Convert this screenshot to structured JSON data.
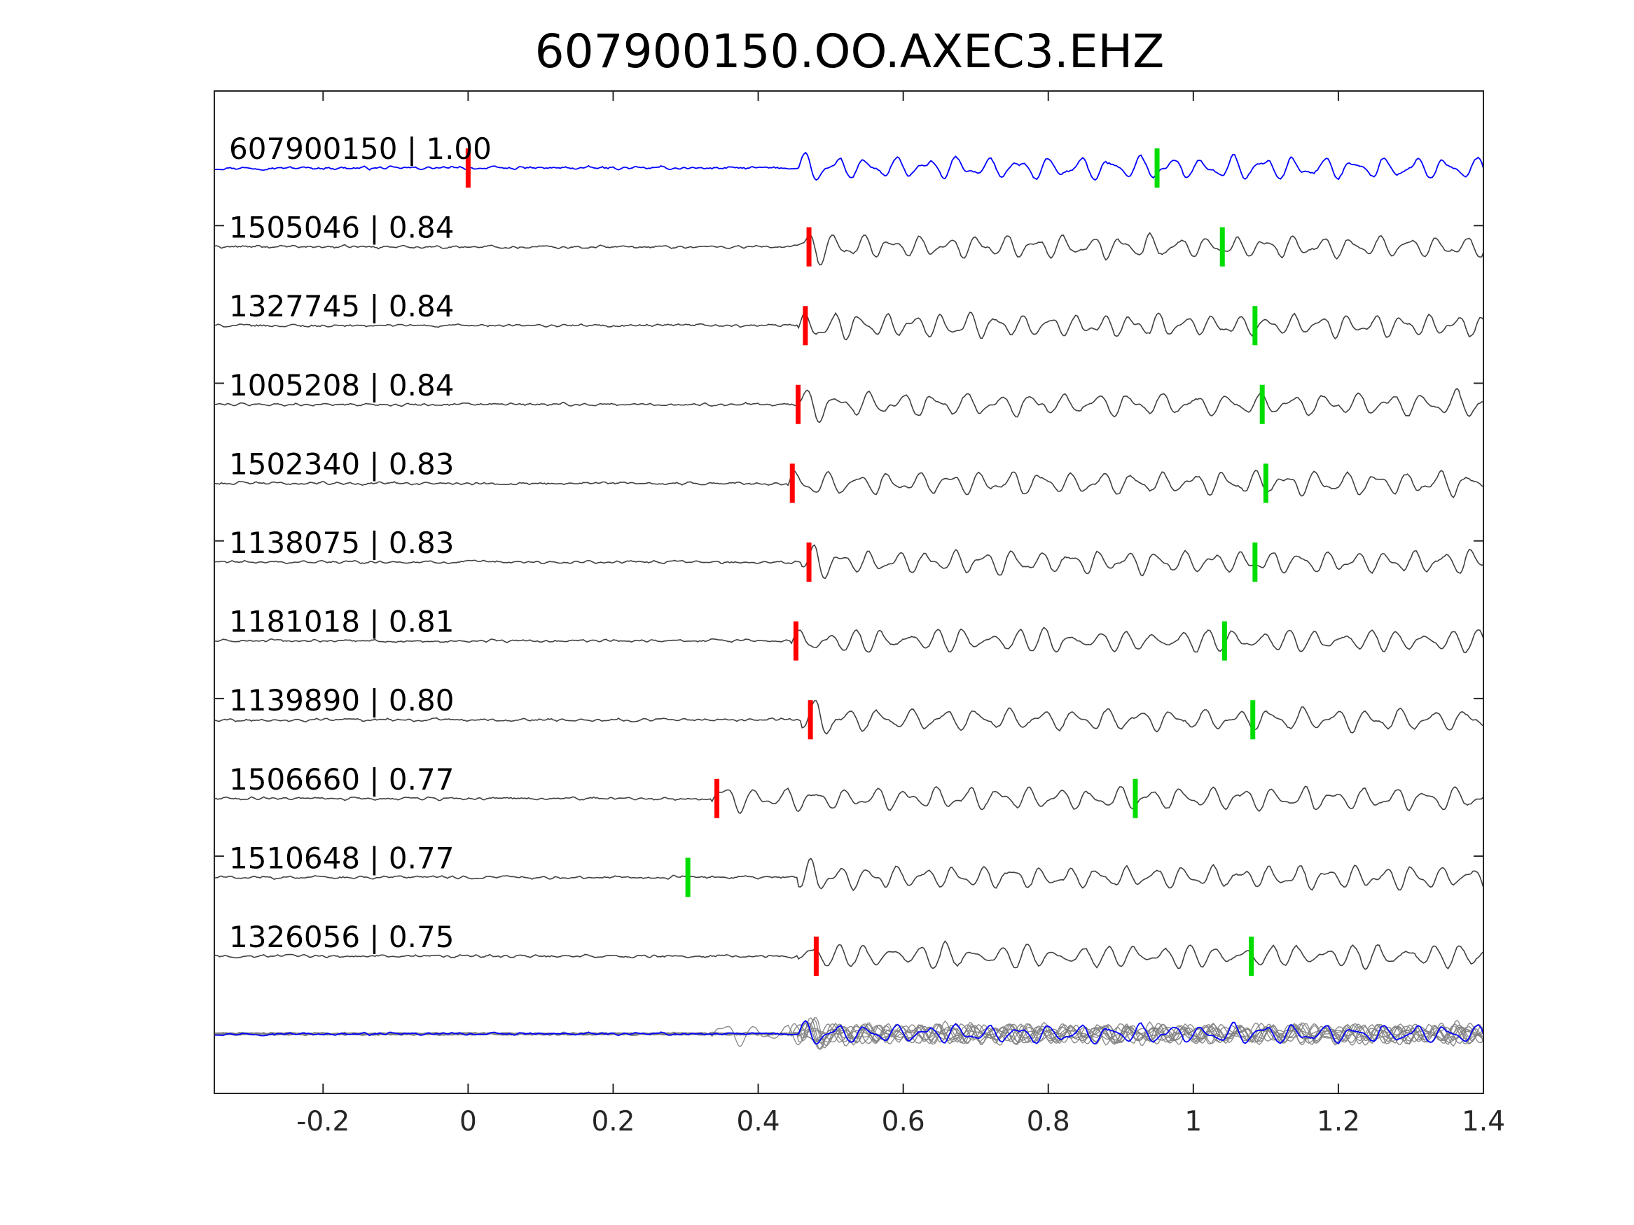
{
  "chart_data": {
    "type": "line",
    "title": "607900150.OO.AXEC3.EHZ",
    "xlabel": "",
    "ylabel": "",
    "xlim": [
      -0.35,
      1.4
    ],
    "x_ticks": [
      -0.2,
      0,
      0.2,
      0.4,
      0.6,
      0.8,
      1,
      1.2,
      1.4
    ],
    "x_tick_labels": [
      "-0.2",
      "0",
      "0.2",
      "0.4",
      "0.6",
      "0.8",
      "1",
      "1.2",
      "1.4"
    ],
    "grid": false,
    "colors": {
      "template": "#0000ff",
      "match": "#404040",
      "stack": "#808080",
      "p_pick": "#ff0000",
      "s_pick": "#00dd00",
      "axes": "#262626"
    },
    "traces": [
      {
        "label": "607900150 | 1.00",
        "id": "607900150",
        "cc": 1.0,
        "onset": 0.46,
        "p_pick": 0.0,
        "s_pick": 0.95,
        "template": true
      },
      {
        "label": "1505046 | 0.84",
        "id": "1505046",
        "cc": 0.84,
        "onset": 0.46,
        "p_pick": 0.47,
        "s_pick": 1.04
      },
      {
        "label": "1327745 | 0.84",
        "id": "1327745",
        "cc": 0.84,
        "onset": 0.46,
        "p_pick": 0.465,
        "s_pick": 1.085
      },
      {
        "label": "1005208 | 0.84",
        "id": "1005208",
        "cc": 0.84,
        "onset": 0.455,
        "p_pick": 0.455,
        "s_pick": 1.095
      },
      {
        "label": "1502340 | 0.83",
        "id": "1502340",
        "cc": 0.83,
        "onset": 0.445,
        "p_pick": 0.447,
        "s_pick": 1.1
      },
      {
        "label": "1138075 | 0.83",
        "id": "1138075",
        "cc": 0.83,
        "onset": 0.465,
        "p_pick": 0.47,
        "s_pick": 1.085
      },
      {
        "label": "1181018 | 0.81",
        "id": "1181018",
        "cc": 0.81,
        "onset": 0.45,
        "p_pick": 0.452,
        "s_pick": 1.043
      },
      {
        "label": "1139890 | 0.80",
        "id": "1139890",
        "cc": 0.8,
        "onset": 0.465,
        "p_pick": 0.472,
        "s_pick": 1.082
      },
      {
        "label": "1506660 | 0.77",
        "id": "1506660",
        "cc": 0.77,
        "onset": 0.34,
        "p_pick": 0.343,
        "s_pick": 0.92
      },
      {
        "label": "1510648 | 0.77",
        "id": "1510648",
        "cc": 0.77,
        "onset": 0.46,
        "p_pick": null,
        "s_pick": 0.303
      },
      {
        "label": "1326056 | 0.75",
        "id": "1326056",
        "cc": 0.75,
        "onset": 0.46,
        "p_pick": 0.48,
        "s_pick": 1.08
      }
    ]
  }
}
